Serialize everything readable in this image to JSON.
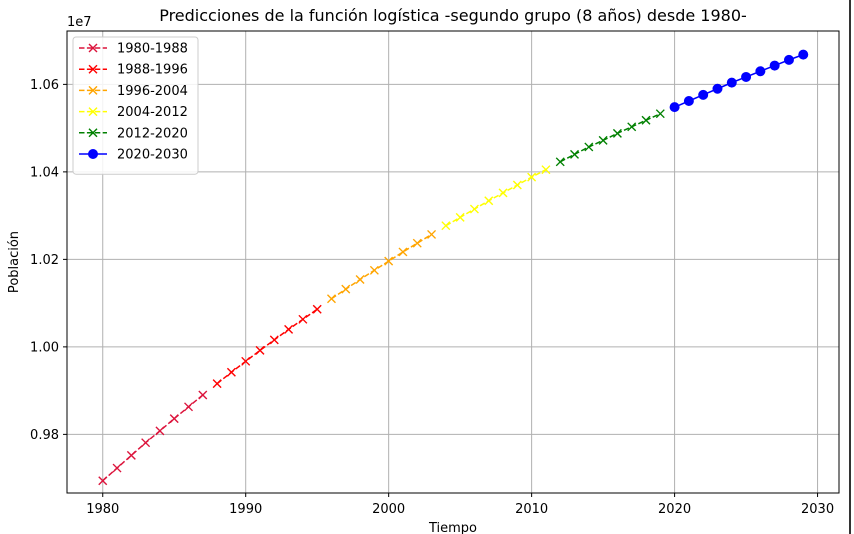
{
  "chart_data": {
    "type": "line",
    "title": "Predicciones de la función logística -segundo grupo (8 años) desde 1980-",
    "xlabel": "Tiempo",
    "ylabel": "Población",
    "y_offset_label": "1e7",
    "xlim": [
      1977.5,
      2031.5
    ],
    "ylim": [
      0.9666,
      1.0722
    ],
    "x_ticks": [
      1980,
      1990,
      2000,
      2010,
      2020,
      2030
    ],
    "y_ticks": [
      0.98,
      1.0,
      1.02,
      1.04,
      1.06
    ],
    "y_tick_labels": [
      "0.98",
      "1.00",
      "1.02",
      "1.04",
      "1.06"
    ],
    "grid": true,
    "legend_position": "top-left",
    "series": [
      {
        "name": "1980-1988",
        "color": "#dc143c",
        "marker": "x",
        "linestyle": "dashed",
        "x": [
          1980,
          1981,
          1982,
          1983,
          1984,
          1985,
          1986,
          1987
        ],
        "y": [
          0.9694,
          0.9723,
          0.9752,
          0.9781,
          0.9808,
          0.9836,
          0.9863,
          0.989
        ]
      },
      {
        "name": "1988-1996",
        "color": "#ff0000",
        "marker": "x",
        "linestyle": "dashed",
        "x": [
          1988,
          1989,
          1990,
          1991,
          1992,
          1993,
          1994,
          1995
        ],
        "y": [
          0.9916,
          0.9942,
          0.9967,
          0.9992,
          1.0016,
          1.004,
          1.0063,
          1.0086
        ]
      },
      {
        "name": "1996-2004",
        "color": "#ffa500",
        "marker": "x",
        "linestyle": "dashed",
        "x": [
          1996,
          1997,
          1998,
          1999,
          2000,
          2001,
          2002,
          2003
        ],
        "y": [
          1.011,
          1.0132,
          1.0154,
          1.0175,
          1.0196,
          1.0217,
          1.0237,
          1.0257
        ]
      },
      {
        "name": "2004-2012",
        "color": "#ffff00",
        "marker": "x",
        "linestyle": "dashed",
        "x": [
          2004,
          2005,
          2006,
          2007,
          2008,
          2009,
          2010,
          2011
        ],
        "y": [
          1.0277,
          1.0296,
          1.0315,
          1.0334,
          1.0352,
          1.037,
          1.0388,
          1.0405
        ]
      },
      {
        "name": "2012-2020",
        "color": "#008000",
        "marker": "x",
        "linestyle": "dashed",
        "x": [
          2012,
          2013,
          2014,
          2015,
          2016,
          2017,
          2018,
          2019
        ],
        "y": [
          1.0423,
          1.044,
          1.0457,
          1.0472,
          1.0488,
          1.0503,
          1.0518,
          1.0533
        ]
      },
      {
        "name": "2020-2030",
        "color": "#0000ff",
        "marker": "o",
        "linestyle": "solid",
        "x": [
          2020,
          2021,
          2022,
          2023,
          2024,
          2025,
          2026,
          2027,
          2028,
          2029
        ],
        "y": [
          1.0548,
          1.0562,
          1.0576,
          1.059,
          1.0604,
          1.0617,
          1.063,
          1.0643,
          1.0656,
          1.0668
        ]
      }
    ]
  }
}
